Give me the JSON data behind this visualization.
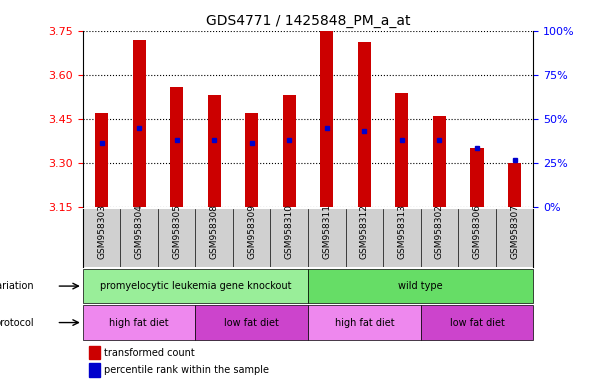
{
  "title": "GDS4771 / 1425848_PM_a_at",
  "samples": [
    "GSM958303",
    "GSM958304",
    "GSM958305",
    "GSM958308",
    "GSM958309",
    "GSM958310",
    "GSM958311",
    "GSM958312",
    "GSM958313",
    "GSM958302",
    "GSM958306",
    "GSM958307"
  ],
  "bar_tops": [
    3.47,
    3.72,
    3.56,
    3.53,
    3.47,
    3.53,
    3.75,
    3.71,
    3.54,
    3.46,
    3.35,
    3.3
  ],
  "bar_base": 3.15,
  "blue_dots": [
    3.37,
    3.42,
    3.38,
    3.38,
    3.37,
    3.38,
    3.42,
    3.41,
    3.38,
    3.38,
    3.35,
    3.31
  ],
  "ylim_left": [
    3.15,
    3.75
  ],
  "ylim_right": [
    0,
    100
  ],
  "yticks_left": [
    3.15,
    3.3,
    3.45,
    3.6,
    3.75
  ],
  "yticks_right": [
    0,
    25,
    50,
    75,
    100
  ],
  "bar_color": "#cc0000",
  "blue_color": "#0000cc",
  "tick_bg_color": "#d0d0d0",
  "genotype_groups": [
    {
      "label": "promyelocytic leukemia gene knockout",
      "start": 0,
      "end": 6,
      "color": "#99ee99"
    },
    {
      "label": "wild type",
      "start": 6,
      "end": 12,
      "color": "#66dd66"
    }
  ],
  "protocol_groups": [
    {
      "label": "high fat diet",
      "start": 0,
      "end": 3,
      "color": "#ee88ee"
    },
    {
      "label": "low fat diet",
      "start": 3,
      "end": 6,
      "color": "#cc44cc"
    },
    {
      "label": "high fat diet",
      "start": 6,
      "end": 9,
      "color": "#ee88ee"
    },
    {
      "label": "low fat diet",
      "start": 9,
      "end": 12,
      "color": "#cc44cc"
    }
  ],
  "legend_items": [
    {
      "label": "transformed count",
      "color": "#cc0000"
    },
    {
      "label": "percentile rank within the sample",
      "color": "#0000cc"
    }
  ],
  "bar_width": 0.35
}
